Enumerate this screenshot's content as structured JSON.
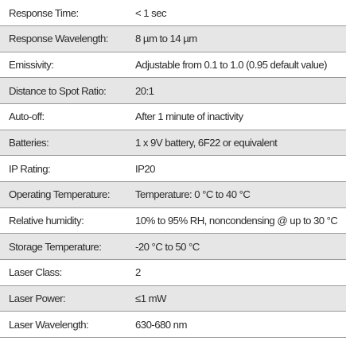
{
  "specs": [
    {
      "label": "Response Time:",
      "value": "< 1 sec"
    },
    {
      "label": "Response Wavelength:",
      "value": "8 µm to 14 µm"
    },
    {
      "label": "Emissivity:",
      "value": "Adjustable from 0.1 to 1.0 (0.95 default value)"
    },
    {
      "label": "Distance to Spot Ratio:",
      "value": "20:1"
    },
    {
      "label": "Auto-off:",
      "value": "After 1 minute of inactivity"
    },
    {
      "label": "Batteries:",
      "value": "1 x 9V battery, 6F22 or equivalent"
    },
    {
      "label": "IP Rating:",
      "value": "IP20"
    },
    {
      "label": "Operating Temperature:",
      "value": "Temperature: 0 °C to 40 °C"
    },
    {
      "label": "Relative humidity:",
      "value": "10% to 95% RH, noncondensing @ up to 30 °C"
    },
    {
      "label": "Storage Temperature:",
      "value": "-20 °C to 50 °C"
    },
    {
      "label": "Laser Class:",
      "value": "2"
    },
    {
      "label": "Laser Power:",
      "value": "≤1 mW"
    },
    {
      "label": "Laser Wavelength:",
      "value": "630-680 nm"
    }
  ],
  "colors": {
    "text": "#2b2b2b",
    "alt_row": "#e6e6e6",
    "divider": "#9a9a9a"
  }
}
